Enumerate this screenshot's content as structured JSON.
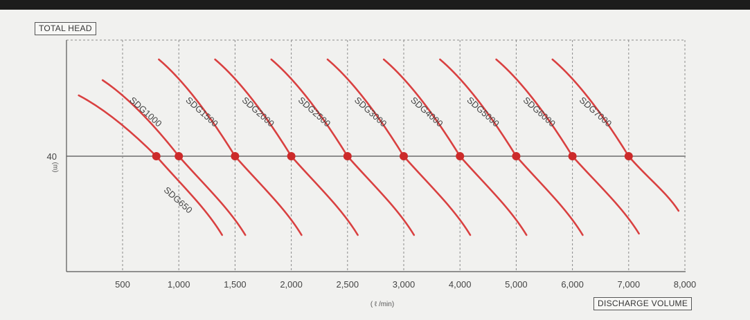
{
  "chart_data": {
    "type": "line",
    "ylabel": "TOTAL HEAD",
    "xlabel": "DISCHARGE VOLUME",
    "x_unit": "( ℓ /min)",
    "y_unit": "(m)",
    "y_ticks": [
      40
    ],
    "x_ticks": [
      500,
      1000,
      1500,
      2000,
      2500,
      3000,
      4000,
      5000,
      6000,
      7000,
      8000
    ],
    "x_tick_labels": [
      "500",
      "1,000",
      "1,500",
      "2,000",
      "2,500",
      "3,000",
      "4,000",
      "5,000",
      "6,000",
      "7,000",
      "8,000"
    ],
    "grid": true,
    "series": [
      {
        "name": "SDG650",
        "rated_x": 800,
        "rated_y": 40
      },
      {
        "name": "SDG1000",
        "rated_x": 1000,
        "rated_y": 40
      },
      {
        "name": "SDG1500",
        "rated_x": 1500,
        "rated_y": 40
      },
      {
        "name": "SDG2000",
        "rated_x": 2000,
        "rated_y": 40
      },
      {
        "name": "SDG2500",
        "rated_x": 2500,
        "rated_y": 40
      },
      {
        "name": "SDG3000",
        "rated_x": 3000,
        "rated_y": 40
      },
      {
        "name": "SDG4000",
        "rated_x": 4000,
        "rated_y": 40
      },
      {
        "name": "SDG5000",
        "rated_x": 5000,
        "rated_y": 40
      },
      {
        "name": "SDG6000",
        "rated_x": 6000,
        "rated_y": 40
      },
      {
        "name": "SDG7000",
        "rated_x": 7000,
        "rated_y": 40
      }
    ],
    "colors": {
      "curve": "#d94040",
      "marker": "#cc2a2a",
      "grid": "#8a8a8a",
      "axis": "#555555"
    }
  }
}
